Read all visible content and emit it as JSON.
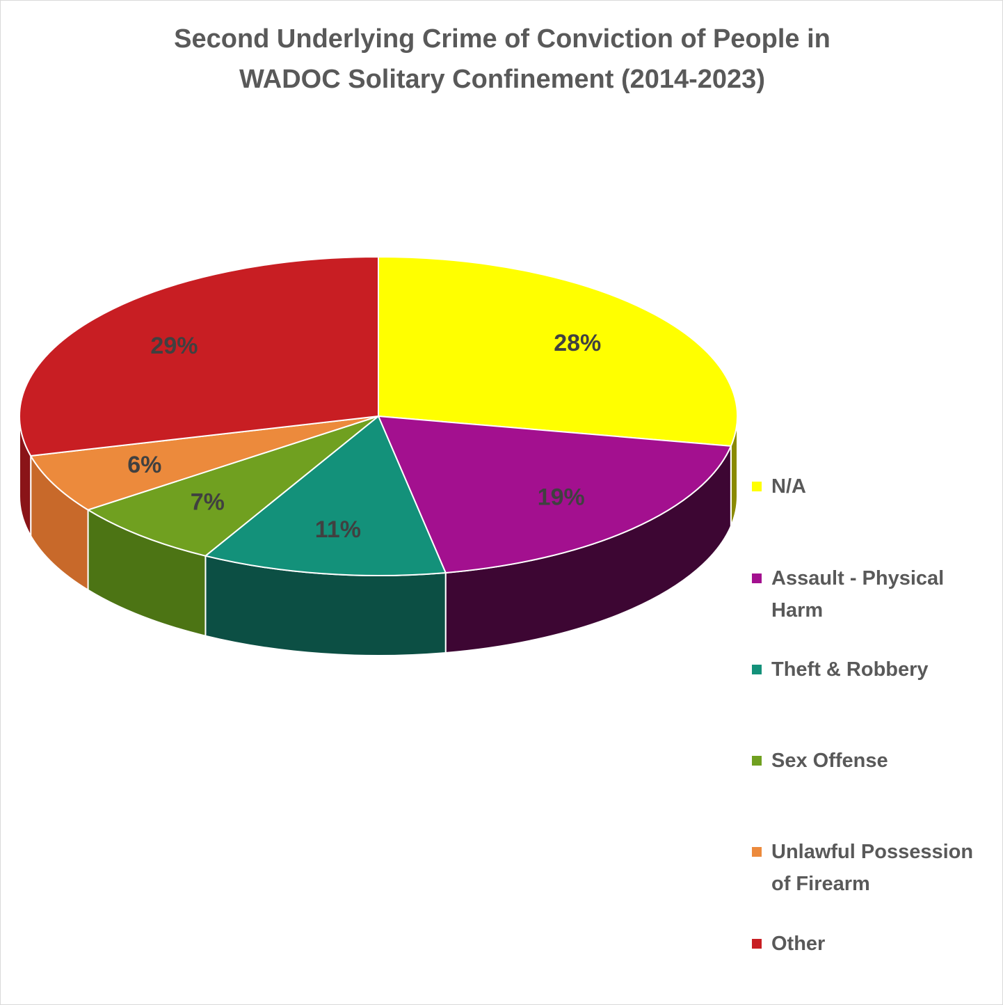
{
  "chart_data": {
    "type": "pie",
    "title": "Second Underlying Crime of Conviction of People in WADOC Solitary Confinement (2014-2023)",
    "title_lines": [
      "Second Underlying Crime of Conviction of People in",
      "WADOC Solitary Confinement (2014-2023)"
    ],
    "three_d": true,
    "legend_position": "right",
    "slices": [
      {
        "name": "N/A",
        "value": 28,
        "label": "28%",
        "color": "#ffff00",
        "side_color": "#8a8a00"
      },
      {
        "name": "Assault - Physical Harm",
        "value": 19,
        "label": "19%",
        "color": "#a3108f",
        "side_color": "#3d0633"
      },
      {
        "name": "Theft & Robbery",
        "value": 11,
        "label": "11%",
        "color": "#13917a",
        "side_color": "#0c4f44"
      },
      {
        "name": "Sex Offense",
        "value": 7,
        "label": "7%",
        "color": "#70a020",
        "side_color": "#4c7414"
      },
      {
        "name": "Unlawful Possession of Firearm",
        "value": 6,
        "label": "6%",
        "color": "#ec8a3c",
        "side_color": "#c8692a"
      },
      {
        "name": "Other",
        "value": 29,
        "label": "29%",
        "color": "#c81e23",
        "side_color": "#8a1418"
      }
    ],
    "legend": [
      {
        "lines": [
          "N/A"
        ]
      },
      {
        "lines": [
          "Assault - Physical",
          "Harm"
        ]
      },
      {
        "lines": [
          "Theft & Robbery"
        ]
      },
      {
        "lines": [
          "Sex Offense"
        ]
      },
      {
        "lines": [
          "Unlawful Possession",
          "of Firearm"
        ]
      },
      {
        "lines": [
          "Other"
        ]
      }
    ]
  }
}
